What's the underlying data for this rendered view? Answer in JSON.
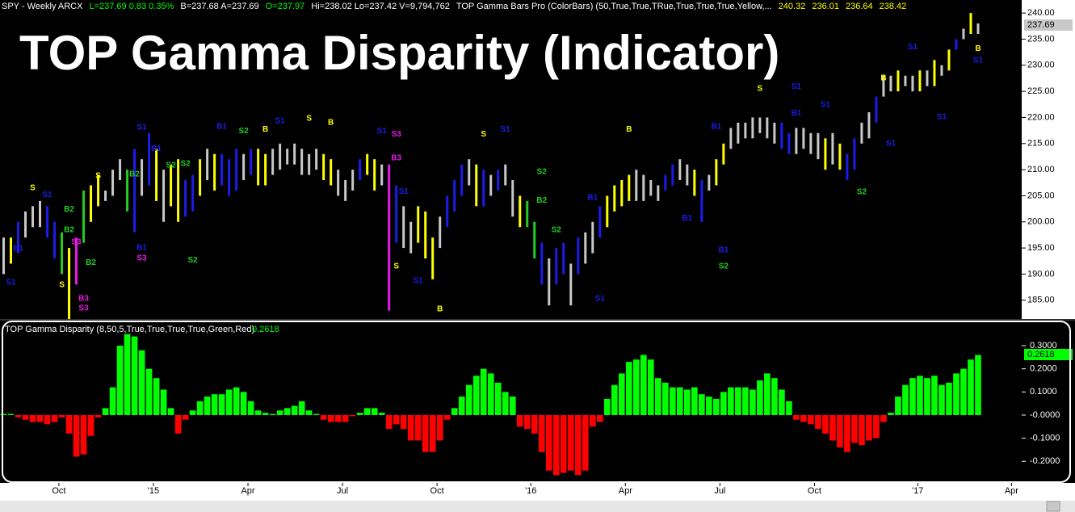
{
  "chart_data": [
    {
      "type": "range_bar",
      "header": [
        {
          "text": "SPY - Weekly  ARCX",
          "color": "#ffffff"
        },
        {
          "text": "L=237.69  0.83  0.35%",
          "color": "#00ff00"
        },
        {
          "text": "B=237.68  A=237.69",
          "color": "#ffffff"
        },
        {
          "text": "O=237.97",
          "color": "#00ff00"
        },
        {
          "text": "Hi=238.02  Lo=237.42  V=9,794,762",
          "color": "#ffffff"
        },
        {
          "text": "TOP Gamma Bars Pro (ColorBars) (50,True,True,TRue,True,True,True,Yellow,...",
          "color": "#ffffff"
        },
        {
          "text": "240.32",
          "color": "#ffff00"
        },
        {
          "text": "236.01",
          "color": "#ffff00"
        },
        {
          "text": "236.64",
          "color": "#ffff00"
        },
        {
          "text": "238.42",
          "color": "#ffff00"
        }
      ],
      "title": "TOP Gamma Disparity (Indicator)",
      "last_price": {
        "value": 237.69,
        "label": "237.69"
      },
      "xlim": [
        -0.5,
        140
      ],
      "ylim": [
        181.4,
        242.5
      ],
      "yticks": [
        {
          "value": 240,
          "label": "240.00"
        },
        {
          "value": 235,
          "label": "235.00"
        },
        {
          "value": 230,
          "label": "230.00"
        },
        {
          "value": 225,
          "label": "225.00"
        },
        {
          "value": 220,
          "label": "220.00"
        },
        {
          "value": 215,
          "label": "215.00"
        },
        {
          "value": 210,
          "label": "210.00"
        },
        {
          "value": 205,
          "label": "205.00"
        },
        {
          "value": 200,
          "label": "200.00"
        },
        {
          "value": 195,
          "label": "195.00"
        },
        {
          "value": 190,
          "label": "190.00"
        },
        {
          "value": 185,
          "label": "185.00"
        }
      ],
      "palette": {
        "w": "#c8c8c8",
        "y": "#ffff00",
        "b": "#1c1ce8",
        "g": "#22cc22",
        "m": "#e619e6"
      },
      "high": [
        197,
        197,
        200,
        202,
        203,
        204,
        203,
        200,
        198,
        195,
        197,
        206,
        207,
        209,
        206,
        210,
        212,
        210,
        214,
        212,
        217,
        214,
        210,
        211,
        212,
        208,
        209,
        212,
        214,
        213,
        213,
        212,
        214,
        213,
        214,
        214,
        213,
        214,
        215,
        214,
        215,
        214,
        213,
        214,
        213,
        212,
        210,
        208,
        210,
        212,
        213,
        212,
        211,
        211,
        207,
        203,
        200,
        203,
        202,
        197,
        201,
        205,
        208,
        211,
        212,
        211,
        210,
        209,
        210,
        211,
        208,
        205,
        204,
        200,
        196,
        193,
        195,
        196,
        192,
        197,
        198,
        200,
        203,
        205,
        207,
        208,
        209,
        210,
        209,
        208,
        207,
        209,
        211,
        212,
        211,
        210,
        208,
        209,
        212,
        215,
        218,
        219,
        219,
        220,
        220,
        220,
        219,
        219,
        217,
        218,
        218,
        217,
        217,
        216,
        217,
        215,
        213,
        216,
        219,
        221,
        224,
        228,
        228,
        229,
        228,
        228,
        229,
        229,
        231,
        230,
        233,
        235,
        237,
        240,
        238
      ],
      "low": [
        190,
        192,
        194,
        197,
        199,
        199,
        197,
        193,
        190,
        181,
        188,
        196,
        200,
        203,
        204,
        205,
        208,
        202,
        198,
        205,
        207,
        204,
        200,
        203,
        200,
        201,
        202,
        205,
        208,
        206,
        207,
        205,
        206,
        208,
        209,
        207,
        207,
        209,
        210,
        211,
        211,
        209,
        209,
        210,
        208,
        207,
        205,
        204,
        206,
        208,
        209,
        206,
        207,
        183,
        196,
        195,
        194,
        196,
        193,
        189,
        195,
        199,
        202,
        205,
        207,
        203,
        203,
        205,
        206,
        207,
        201,
        199,
        199,
        193,
        188,
        184,
        188,
        190,
        184,
        190,
        192,
        194,
        197,
        199,
        202,
        203,
        204,
        204,
        204,
        205,
        204,
        206,
        207,
        208,
        207,
        205,
        200,
        206,
        207,
        211,
        214,
        215,
        216,
        216,
        217,
        216,
        215,
        214,
        213,
        213,
        214,
        213,
        212,
        210,
        211,
        210,
        208,
        210,
        215,
        216,
        219,
        224,
        225,
        225,
        226,
        225,
        225,
        226,
        226,
        228,
        229,
        233,
        235,
        236,
        236
      ],
      "bar_colors": [
        "w",
        "y",
        "b",
        "w",
        "w",
        "w",
        "b",
        "b",
        "g",
        "y",
        "m",
        "g",
        "y",
        "y",
        "w",
        "w",
        "w",
        "g",
        "b",
        "w",
        "b",
        "y",
        "w",
        "y",
        "y",
        "b",
        "b",
        "y",
        "w",
        "y",
        "b",
        "b",
        "b",
        "w",
        "b",
        "y",
        "y",
        "w",
        "w",
        "w",
        "w",
        "w",
        "w",
        "w",
        "y",
        "y",
        "w",
        "w",
        "w",
        "b",
        "y",
        "y",
        "w",
        "m",
        "b",
        "w",
        "w",
        "y",
        "y",
        "y",
        "w",
        "b",
        "b",
        "b",
        "w",
        "y",
        "b",
        "w",
        "b",
        "w",
        "w",
        "y",
        "g",
        "g",
        "b",
        "w",
        "b",
        "b",
        "w",
        "b",
        "w",
        "w",
        "b",
        "y",
        "y",
        "y",
        "y",
        "w",
        "w",
        "w",
        "w",
        "b",
        "b",
        "w",
        "w",
        "y",
        "b",
        "w",
        "y",
        "y",
        "w",
        "w",
        "w",
        "w",
        "w",
        "w",
        "w",
        "b",
        "b",
        "w",
        "w",
        "w",
        "w",
        "y",
        "w",
        "y",
        "b",
        "b",
        "w",
        "w",
        "b",
        "w",
        "w",
        "y",
        "w",
        "w",
        "y",
        "w",
        "y",
        "w",
        "y",
        "b",
        "w",
        "y",
        "w"
      ],
      "signals": [
        [
          4,
          "S",
          206.5,
          "y"
        ],
        [
          6,
          "S1",
          205.2,
          "b"
        ],
        [
          9,
          "B2",
          202.4,
          "g"
        ],
        [
          2,
          "B1",
          194.9,
          "b"
        ],
        [
          1,
          "S1",
          188.4,
          "b"
        ],
        [
          8,
          "S",
          187.9,
          "y"
        ],
        [
          9,
          "B2",
          198.4,
          "g"
        ],
        [
          10,
          "S3",
          196.1,
          "m"
        ],
        [
          12,
          "B2",
          192.2,
          "g"
        ],
        [
          11,
          "B3",
          185.3,
          "m"
        ],
        [
          11,
          "S3",
          183.4,
          "m"
        ],
        [
          13,
          "S",
          208.8,
          "y"
        ],
        [
          18,
          "B2",
          209.1,
          "g"
        ],
        [
          19,
          "S1",
          218.1,
          "b"
        ],
        [
          21,
          "B1",
          214.0,
          "b"
        ],
        [
          23,
          "S2",
          210.8,
          "g"
        ],
        [
          25,
          "S2",
          211.1,
          "g"
        ],
        [
          19,
          "S3",
          193.0,
          "m"
        ],
        [
          19,
          "B1",
          195.0,
          "b"
        ],
        [
          26,
          "S2",
          192.6,
          "g"
        ],
        [
          30,
          "B1",
          218.2,
          "b"
        ],
        [
          33,
          "S2",
          217.4,
          "g"
        ],
        [
          36,
          "B",
          217.7,
          "y"
        ],
        [
          38,
          "S1",
          219.3,
          "b"
        ],
        [
          42,
          "S",
          219.8,
          "y"
        ],
        [
          45,
          "B",
          219.0,
          "y"
        ],
        [
          52,
          "S1",
          217.4,
          "b"
        ],
        [
          54,
          "S3",
          216.8,
          "m"
        ],
        [
          54,
          "B3",
          212.2,
          "m"
        ],
        [
          55,
          "S1",
          205.8,
          "b"
        ],
        [
          54,
          "S",
          191.5,
          "y"
        ],
        [
          57,
          "S1",
          188.7,
          "b"
        ],
        [
          60,
          "B",
          183.3,
          "y"
        ],
        [
          66,
          "S",
          216.8,
          "y"
        ],
        [
          69,
          "S1",
          217.7,
          "b"
        ],
        [
          74,
          "S2",
          209.6,
          "g"
        ],
        [
          74,
          "B2",
          204.1,
          "g"
        ],
        [
          76,
          "S2",
          198.4,
          "g"
        ],
        [
          81,
          "B1",
          204.6,
          "b"
        ],
        [
          82,
          "S1",
          185.3,
          "b"
        ],
        [
          86,
          "B",
          217.7,
          "y"
        ],
        [
          94,
          "B1",
          200.7,
          "b"
        ],
        [
          98,
          "B1",
          218.2,
          "b"
        ],
        [
          99,
          "B1",
          194.6,
          "b"
        ],
        [
          99,
          "S2",
          191.5,
          "g"
        ],
        [
          104,
          "S",
          225.5,
          "y"
        ],
        [
          109,
          "S1",
          225.9,
          "b"
        ],
        [
          109,
          "B1",
          220.8,
          "b"
        ],
        [
          113,
          "S1",
          222.4,
          "b"
        ],
        [
          118,
          "S2",
          205.7,
          "g"
        ],
        [
          122,
          "S1",
          215.0,
          "b"
        ],
        [
          121,
          "B",
          227.5,
          "y"
        ],
        [
          125,
          "S1",
          233.5,
          "b"
        ],
        [
          129,
          "S1",
          220.1,
          "b"
        ],
        [
          134,
          "B",
          233.2,
          "y"
        ],
        [
          134,
          "S1",
          230.9,
          "b"
        ]
      ]
    },
    {
      "type": "histogram",
      "legend": "TOP Gamma  Disparity (8,50,5,True,True,True,True,Green,Red)",
      "last_value": {
        "value": 0.2618,
        "label": "0.2618"
      },
      "positive_color": "#00ff00",
      "negative_color": "#ff0000",
      "xlim": [
        -0.5,
        140
      ],
      "ylim": [
        -0.29,
        0.405
      ],
      "yticks": [
        {
          "value": 0.3,
          "label": "0.3000"
        },
        {
          "value": 0.2,
          "label": "0.2000"
        },
        {
          "value": 0.1,
          "label": "0.1000"
        },
        {
          "value": 0,
          "label": "-0.0000"
        },
        {
          "value": -0.1,
          "label": "-0.1000"
        },
        {
          "value": -0.2,
          "label": "-0.2000"
        }
      ],
      "xticks": [
        {
          "value": 7.6,
          "label": "Oct"
        },
        {
          "value": 20.6,
          "label": "'15"
        },
        {
          "value": 33.6,
          "label": "Apr"
        },
        {
          "value": 46.6,
          "label": "Jul"
        },
        {
          "value": 59.6,
          "label": "Oct"
        },
        {
          "value": 72.5,
          "label": "'16"
        },
        {
          "value": 85.5,
          "label": "Apr"
        },
        {
          "value": 98.5,
          "label": "Jul"
        },
        {
          "value": 111.5,
          "label": "Oct"
        },
        {
          "value": 125.7,
          "label": "'17"
        },
        {
          "value": 138.6,
          "label": "Apr"
        }
      ],
      "values": [
        0.005,
        0.005,
        -0.01,
        -0.02,
        -0.03,
        -0.03,
        -0.04,
        -0.03,
        -0.01,
        -0.08,
        -0.18,
        -0.17,
        -0.09,
        -0.01,
        0.03,
        0.12,
        0.3,
        0.35,
        0.34,
        0.28,
        0.2,
        0.16,
        0.11,
        0.03,
        -0.08,
        -0.02,
        0.02,
        0.06,
        0.08,
        0.09,
        0.09,
        0.11,
        0.12,
        0.1,
        0.06,
        0.02,
        0.01,
        0.005,
        0.02,
        0.03,
        0.04,
        0.06,
        0.02,
        0.005,
        -0.02,
        -0.03,
        -0.03,
        -0.03,
        -0.005,
        0.01,
        0.03,
        0.03,
        0.01,
        -0.06,
        -0.04,
        -0.06,
        -0.11,
        -0.11,
        -0.16,
        -0.16,
        -0.11,
        -0.02,
        0.03,
        0.08,
        0.13,
        0.17,
        0.2,
        0.18,
        0.14,
        0.1,
        0.08,
        -0.05,
        -0.06,
        -0.08,
        -0.16,
        -0.24,
        -0.26,
        -0.25,
        -0.24,
        -0.26,
        -0.24,
        -0.05,
        -0.03,
        0.07,
        0.13,
        0.18,
        0.23,
        0.24,
        0.26,
        0.24,
        0.16,
        0.14,
        0.12,
        0.12,
        0.11,
        0.12,
        0.09,
        0.08,
        0.07,
        0.1,
        0.12,
        0.12,
        0.12,
        0.11,
        0.15,
        0.18,
        0.16,
        0.11,
        0.06,
        -0.02,
        -0.03,
        -0.04,
        -0.06,
        -0.08,
        -0.11,
        -0.14,
        -0.16,
        -0.12,
        -0.13,
        -0.11,
        -0.1,
        -0.03,
        0.01,
        0.08,
        0.13,
        0.16,
        0.17,
        0.16,
        0.17,
        0.13,
        0.14,
        0.18,
        0.2,
        0.24,
        0.26
      ]
    }
  ]
}
